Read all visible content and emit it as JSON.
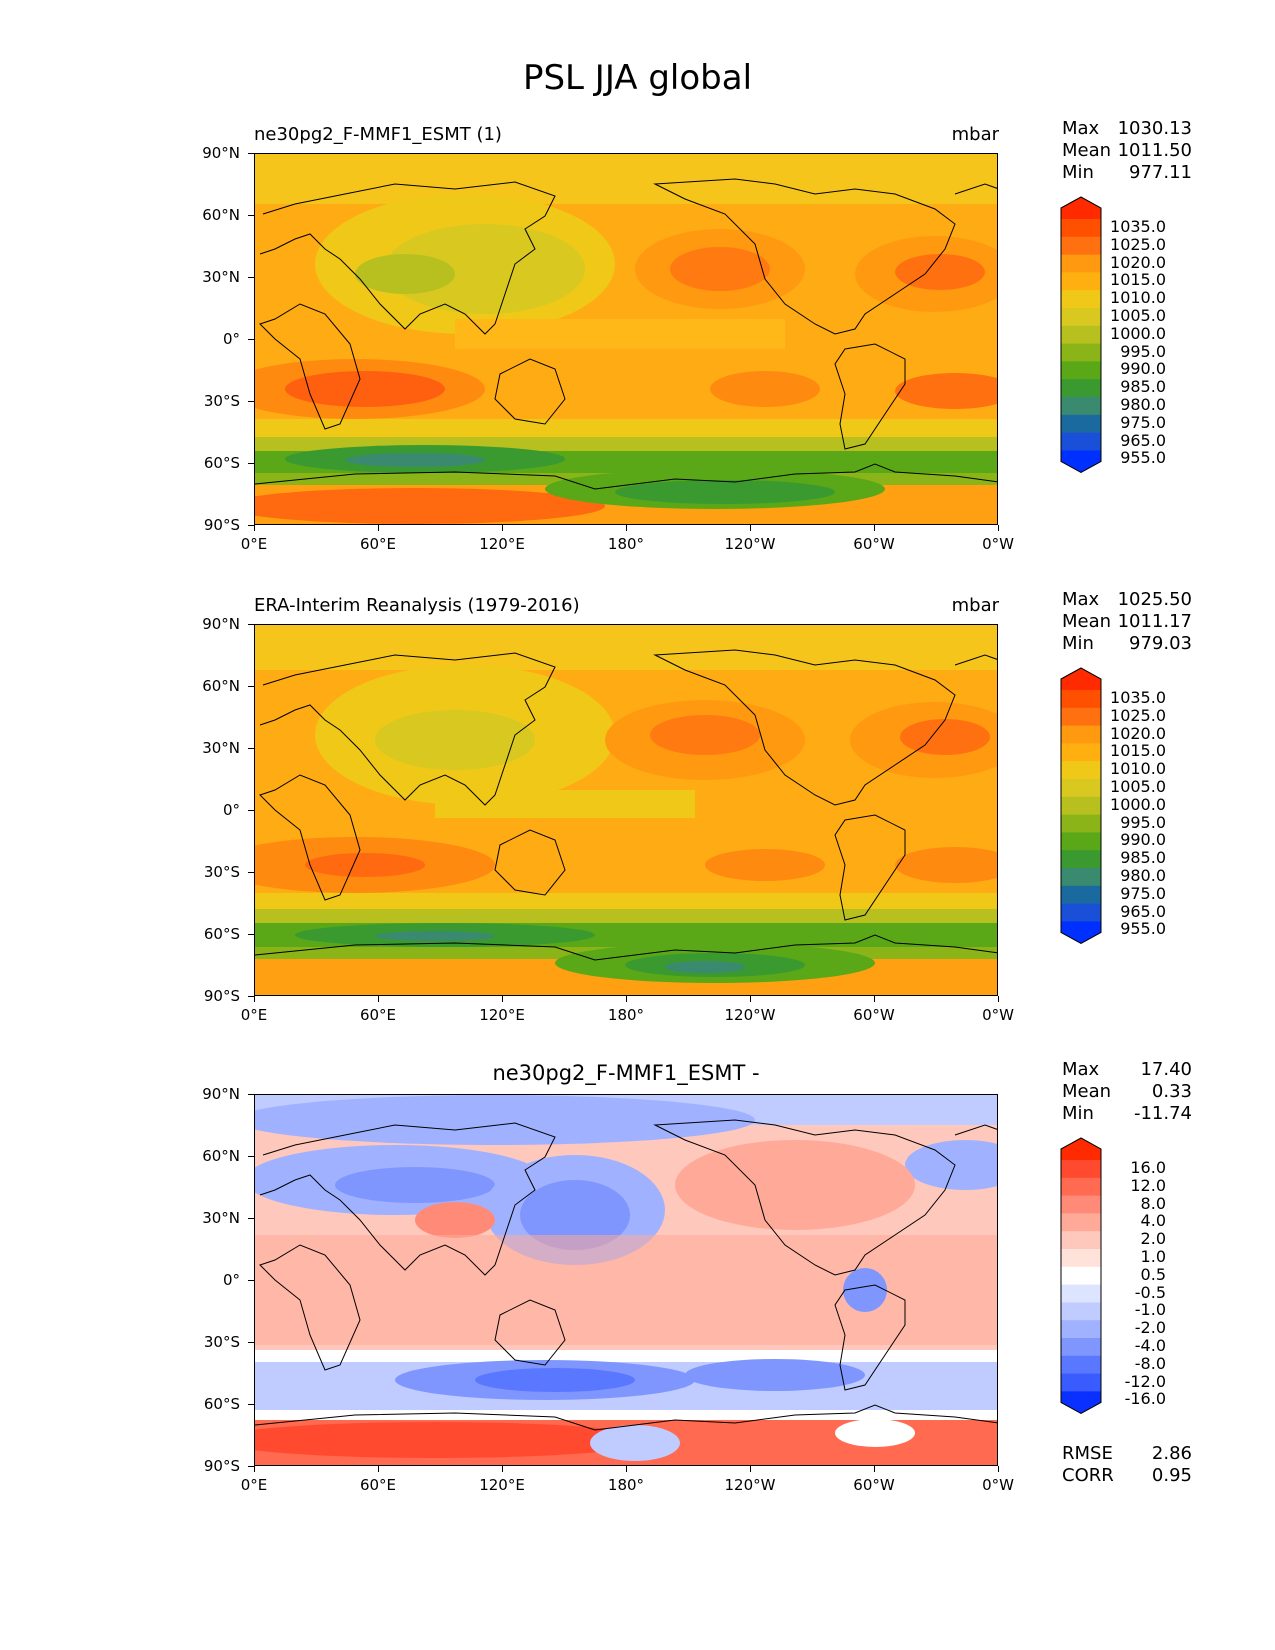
{
  "title": "PSL JJA global",
  "panels": [
    {
      "id": "test",
      "title_left": "ne30pg2_F-MMF1_ESMT (1)",
      "title_right": "mbar",
      "stats": {
        "max": "1030.13",
        "mean": "1011.50",
        "min": "977.11"
      },
      "stat_labels": {
        "max": "Max",
        "mean": "Mean",
        "min": "Min"
      },
      "colorbar": {
        "labels": [
          "1035.0",
          "1025.0",
          "1020.0",
          "1015.0",
          "1010.0",
          "1005.0",
          "1000.0",
          "995.0",
          "990.0",
          "985.0",
          "980.0",
          "975.0",
          "965.0",
          "955.0"
        ],
        "colors": [
          "#ff2a00",
          "#ff5000",
          "#ff7010",
          "#ff9a10",
          "#ffb010",
          "#f0c818",
          "#d8c820",
          "#b8c020",
          "#8ab418",
          "#5aa818",
          "#3a9a30",
          "#3a8a70",
          "#1a6aa0",
          "#1a50d8",
          "#0030ff"
        ]
      }
    },
    {
      "id": "reference",
      "title_left": "ERA-Interim Reanalysis (1979-2016)",
      "title_right": "mbar",
      "stats": {
        "max": "1025.50",
        "mean": "1011.17",
        "min": "979.03"
      },
      "stat_labels": {
        "max": "Max",
        "mean": "Mean",
        "min": "Min"
      },
      "colorbar": {
        "labels": [
          "1035.0",
          "1025.0",
          "1020.0",
          "1015.0",
          "1010.0",
          "1005.0",
          "1000.0",
          "995.0",
          "990.0",
          "985.0",
          "980.0",
          "975.0",
          "965.0",
          "955.0"
        ],
        "colors": [
          "#ff2a00",
          "#ff5000",
          "#ff7010",
          "#ff9a10",
          "#ffb010",
          "#f0c818",
          "#d8c820",
          "#b8c020",
          "#8ab418",
          "#5aa818",
          "#3a9a30",
          "#3a8a70",
          "#1a6aa0",
          "#1a50d8",
          "#0030ff"
        ]
      }
    },
    {
      "id": "difference",
      "title_center": "ne30pg2_F-MMF1_ESMT -",
      "stats": {
        "max": "17.40",
        "mean": "0.33",
        "min": "-11.74"
      },
      "stat_labels": {
        "max": "Max",
        "mean": "Mean",
        "min": "Min"
      },
      "colorbar": {
        "labels": [
          "16.0",
          "12.0",
          "8.0",
          "4.0",
          "2.0",
          "1.0",
          "0.5",
          "-0.5",
          "-1.0",
          "-2.0",
          "-4.0",
          "-8.0",
          "-12.0",
          "-16.0"
        ],
        "colors": [
          "#ff2a00",
          "#ff4a30",
          "#ff6a50",
          "#ff8a78",
          "#ffaa98",
          "#ffc8bc",
          "#ffe2da",
          "#ffffff",
          "#dde4ff",
          "#c0ccff",
          "#a0b2ff",
          "#7f96ff",
          "#5a78ff",
          "#3a5cff",
          "#0a30ff"
        ]
      },
      "metrics": {
        "rmse_label": "RMSE",
        "rmse": "2.86",
        "corr_label": "CORR",
        "corr": "0.95"
      }
    }
  ],
  "axes": {
    "y_ticks": [
      "90°N",
      "60°N",
      "30°N",
      "0°",
      "30°S",
      "60°S",
      "90°S"
    ],
    "x_ticks": [
      "0°E",
      "60°E",
      "120°E",
      "180°",
      "120°W",
      "60°W",
      "0°W"
    ]
  },
  "colors": {
    "psl_base": "#ffab14",
    "psl_high": "#ff7a10",
    "psl_low": "#3a9a30",
    "diff_pos": "#ffaa98",
    "diff_neg": "#7f96ff"
  }
}
